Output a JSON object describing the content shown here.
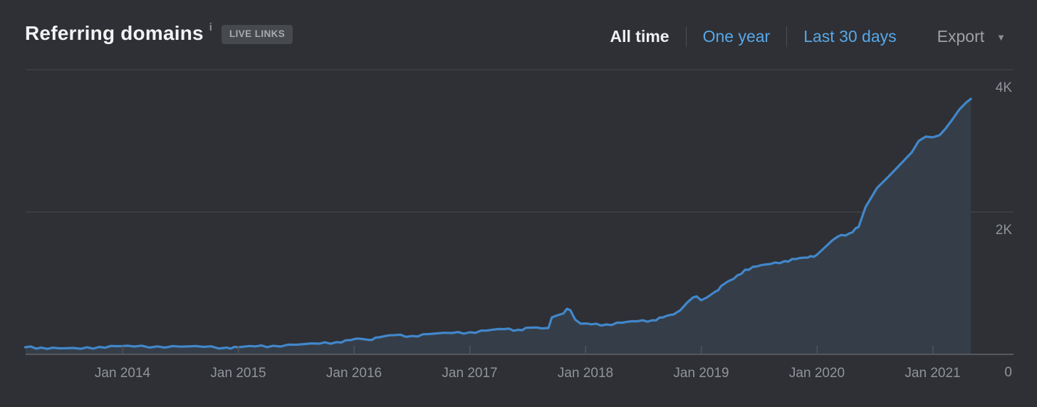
{
  "header": {
    "title": "Referring domains",
    "info_icon": "i",
    "badge": "LIVE LINKS",
    "tabs": [
      {
        "label": "All time",
        "active": true
      },
      {
        "label": "One year",
        "active": false
      },
      {
        "label": "Last 30 days",
        "active": false
      }
    ],
    "export_label": "Export",
    "export_caret": "▼"
  },
  "colors": {
    "background": "#2e3035",
    "title_text": "#f2f3f5",
    "link_blue": "#58a7e9",
    "active_tab": "#eef0f2",
    "muted_gray": "#9da0a4",
    "badge_bg": "#46494e",
    "badge_text": "#a7aaae",
    "grid": "#45484c",
    "axis": "#55585c",
    "axis_text": "#909499",
    "line_blue": "#4287cb",
    "area_fill": "#353e48"
  },
  "chart_data": {
    "type": "area",
    "title": "Referring domains",
    "xlabel": "",
    "ylabel": "",
    "legend": "none",
    "grid": "horizontal",
    "ylim": [
      0,
      4000
    ],
    "x_range_years": [
      2013.16,
      2021.33
    ],
    "x_tick_labels": [
      "Jan 2014",
      "Jan 2015",
      "Jan 2016",
      "Jan 2017",
      "Jan 2018",
      "Jan 2019",
      "Jan 2020",
      "Jan 2021"
    ],
    "x_tick_years": [
      2014,
      2015,
      2016,
      2017,
      2018,
      2019,
      2020,
      2021
    ],
    "y_tick_labels": [
      "4K",
      "2K",
      "0"
    ],
    "y_tick_values": [
      4000,
      2000,
      0
    ],
    "series": [
      {
        "name": "Referring domains",
        "points": [
          [
            2013.16,
            100
          ],
          [
            2013.3,
            95
          ],
          [
            2013.45,
            85
          ],
          [
            2013.64,
            78
          ],
          [
            2013.8,
            105
          ],
          [
            2013.95,
            115
          ],
          [
            2014.1,
            110
          ],
          [
            2014.3,
            112
          ],
          [
            2014.5,
            108
          ],
          [
            2014.7,
            105
          ],
          [
            2014.9,
            95
          ],
          [
            2015.0,
            100
          ],
          [
            2015.15,
            112
          ],
          [
            2015.3,
            120
          ],
          [
            2015.5,
            135
          ],
          [
            2015.7,
            150
          ],
          [
            2015.85,
            172
          ],
          [
            2015.97,
            200
          ],
          [
            2016.05,
            220
          ],
          [
            2016.12,
            205
          ],
          [
            2016.22,
            240
          ],
          [
            2016.35,
            270
          ],
          [
            2016.5,
            258
          ],
          [
            2016.65,
            285
          ],
          [
            2016.85,
            300
          ],
          [
            2017.0,
            310
          ],
          [
            2017.15,
            335
          ],
          [
            2017.3,
            355
          ],
          [
            2017.42,
            345
          ],
          [
            2017.52,
            375
          ],
          [
            2017.62,
            365
          ],
          [
            2017.68,
            370
          ],
          [
            2017.71,
            520
          ],
          [
            2017.76,
            550
          ],
          [
            2017.81,
            575
          ],
          [
            2017.84,
            640
          ],
          [
            2017.87,
            620
          ],
          [
            2017.91,
            490
          ],
          [
            2017.96,
            430
          ],
          [
            2018.05,
            422
          ],
          [
            2018.18,
            420
          ],
          [
            2018.32,
            445
          ],
          [
            2018.45,
            465
          ],
          [
            2018.58,
            480
          ],
          [
            2018.67,
            520
          ],
          [
            2018.76,
            560
          ],
          [
            2018.82,
            620
          ],
          [
            2018.88,
            730
          ],
          [
            2018.93,
            800
          ],
          [
            2018.96,
            815
          ],
          [
            2019.0,
            760
          ],
          [
            2019.05,
            800
          ],
          [
            2019.12,
            880
          ],
          [
            2019.2,
            990
          ],
          [
            2019.28,
            1060
          ],
          [
            2019.38,
            1190
          ],
          [
            2019.48,
            1235
          ],
          [
            2019.6,
            1270
          ],
          [
            2019.72,
            1310
          ],
          [
            2019.82,
            1340
          ],
          [
            2019.92,
            1360
          ],
          [
            2020.0,
            1400
          ],
          [
            2020.1,
            1550
          ],
          [
            2020.18,
            1655
          ],
          [
            2020.28,
            1700
          ],
          [
            2020.36,
            1790
          ],
          [
            2020.42,
            2070
          ],
          [
            2020.52,
            2340
          ],
          [
            2020.62,
            2500
          ],
          [
            2020.72,
            2670
          ],
          [
            2020.82,
            2840
          ],
          [
            2020.88,
            3000
          ],
          [
            2020.94,
            3060
          ],
          [
            2021.0,
            3050
          ],
          [
            2021.06,
            3080
          ],
          [
            2021.11,
            3170
          ],
          [
            2021.17,
            3300
          ],
          [
            2021.23,
            3440
          ],
          [
            2021.29,
            3540
          ],
          [
            2021.33,
            3590
          ]
        ]
      }
    ]
  }
}
